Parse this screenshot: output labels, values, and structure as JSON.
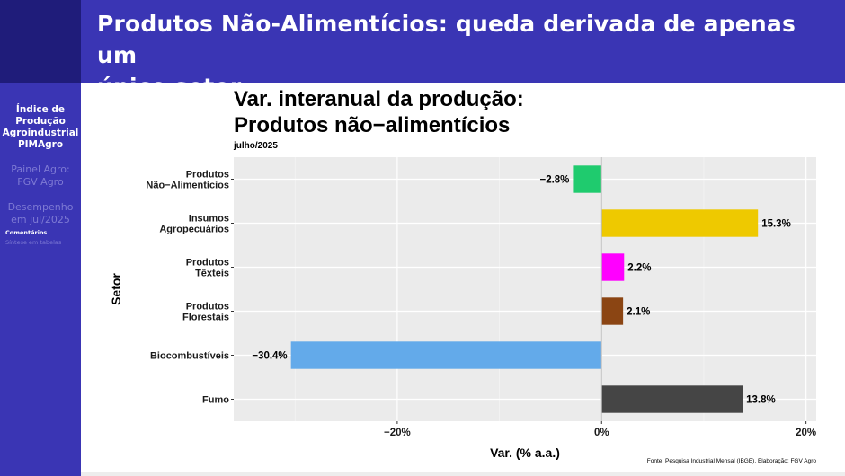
{
  "slide": {
    "title_line1": "Produtos Não-Alimentícios: queda derivada de apenas um",
    "title_line2": "único setor"
  },
  "sidebar": {
    "section1": [
      "Índice de",
      "Produção",
      "Agroindustrial",
      "PIMAgro"
    ],
    "section2": [
      "Painel Agro:",
      "FGV Agro"
    ],
    "section3": [
      "Desempenho",
      "em jul/2025"
    ],
    "sub_items": [
      "Comentários",
      "Síntese em tabelas"
    ]
  },
  "colors": {
    "header_bg": "#3a35b4",
    "sidebar_bg": "#3a35b4",
    "panel_bg": "#ebebeb",
    "grid": "#ffffff"
  },
  "chart_data": {
    "type": "bar",
    "orientation": "horizontal",
    "title_line1": "Var. interanual da produção:",
    "title_line2": "Produtos não−alimentícios",
    "subtitle": "julho/2025",
    "xlabel": "Var. (% a.a.)",
    "ylabel": "Setor",
    "xlim": [
      -36,
      21
    ],
    "xticks": [
      -20,
      0,
      20
    ],
    "xtick_labels": [
      "−20%",
      "0%",
      "20%"
    ],
    "grid": true,
    "categories": [
      [
        "Produtos",
        "Não−Alimentícios"
      ],
      [
        "Insumos",
        "Agropecuários"
      ],
      [
        "Produtos",
        "Têxteis"
      ],
      [
        "Produtos",
        "Florestais"
      ],
      [
        "Biocombustíveis"
      ],
      [
        "Fumo"
      ]
    ],
    "values": [
      -2.8,
      15.3,
      2.2,
      2.1,
      -30.4,
      13.8
    ],
    "value_labels": [
      "−2.8%",
      "15.3%",
      "2.2%",
      "2.1%",
      "−30.4%",
      "13.8%"
    ],
    "bar_colors": [
      "#1fcb6e",
      "#eec900",
      "#ff00ff",
      "#8b4513",
      "#63aaea",
      "#454545"
    ],
    "caption": "Fonte: Pesquisa Industrial Mensal (IBGE). Elaboração: FGV Agro"
  }
}
